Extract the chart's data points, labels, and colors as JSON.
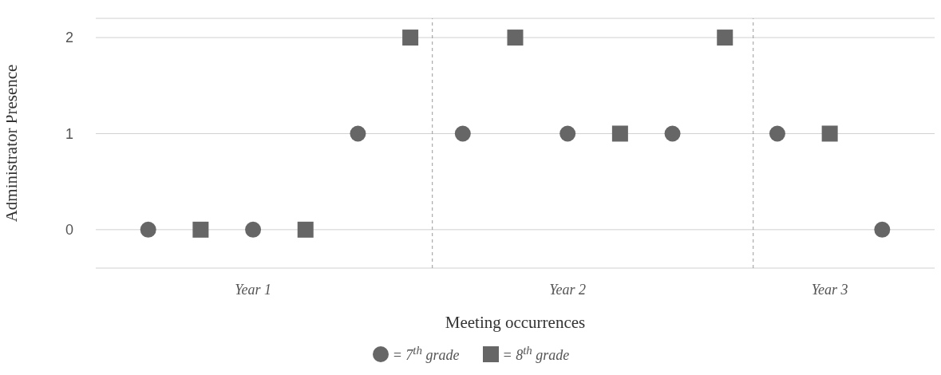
{
  "chart_data": {
    "type": "scatter",
    "xlabel": "Meeting occurrences",
    "ylabel": "Administrator Presence",
    "categories": [
      null,
      null,
      "Year 1",
      null,
      null,
      null,
      null,
      null,
      "Year 2",
      null,
      null,
      null,
      null,
      "Year 3",
      null
    ],
    "ylim": [
      -0.4,
      2.2
    ],
    "yticks": [
      0,
      1,
      2
    ],
    "grid": "y",
    "legend": "bottom",
    "series": [
      {
        "name": "= 7$^{th}$ grade",
        "color": "#666666",
        "marker": "circle",
        "values": [
          0,
          null,
          0,
          null,
          1,
          null,
          1,
          null,
          1,
          null,
          1,
          null,
          1,
          null,
          0
        ]
      },
      {
        "name": "= 8$^{th}$ grade",
        "color": "#666666",
        "marker": "square",
        "values": [
          null,
          0,
          null,
          0,
          null,
          2,
          null,
          2,
          null,
          1,
          null,
          2,
          null,
          1,
          null
        ]
      }
    ]
  }
}
